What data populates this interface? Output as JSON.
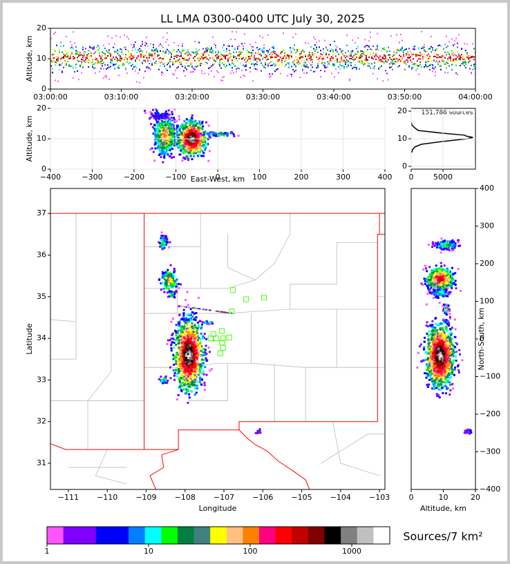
{
  "chart_data": [
    {
      "type": "density",
      "title": "LL LMA 0300-0400 UTC July 30, 2025",
      "y_label": "Altitude, km",
      "ylim": [
        0,
        20
      ],
      "yticks": [
        0,
        10,
        20
      ],
      "xticks": [
        "03:00:00",
        "03:10:00",
        "03:20:00",
        "03:30:00",
        "03:40:00",
        "03:50:00",
        "04:00:00"
      ]
    },
    {
      "type": "density",
      "x_label": "East-West, km",
      "y_label": "Altitude, km",
      "xlim": [
        -400,
        400
      ],
      "xticks": [
        {
          "value": -400,
          "label": "−400"
        },
        {
          "value": -300,
          "label": "−300"
        },
        {
          "value": -200,
          "label": "−200"
        },
        {
          "value": -100,
          "label": "−100"
        },
        0,
        100,
        200,
        300,
        400
      ],
      "ylim": [
        0,
        20
      ],
      "yticks": [
        0,
        10,
        20
      ],
      "grid": true
    },
    {
      "type": "line",
      "annotation": "151,786 sources",
      "xlim": [
        0,
        10100
      ],
      "xticks": [
        0,
        5000
      ],
      "ylim": [
        -1,
        21
      ],
      "yticks": [
        0,
        10,
        20
      ],
      "grid": true,
      "series": [
        {
          "color": "#000000",
          "y": [
            5,
            6,
            7,
            8,
            9,
            10,
            10.5,
            11,
            11.3,
            12,
            13,
            14,
            15,
            16
          ],
          "values": [
            100,
            200,
            540,
            1600,
            4900,
            8800,
            9700,
            8600,
            8400,
            5000,
            1100,
            540,
            100,
            30
          ]
        }
      ]
    },
    {
      "type": "map",
      "x_label": "Longitude",
      "y_label": "Latitude",
      "xlim": [
        -111.46,
        -102.86
      ],
      "xticks": [
        {
          "value": -111,
          "label": "−111"
        },
        {
          "value": -110,
          "label": "−110"
        },
        {
          "value": -109,
          "label": "−109"
        },
        {
          "value": -108,
          "label": "−108"
        },
        {
          "value": -107,
          "label": "−107"
        },
        {
          "value": -106,
          "label": "−106"
        },
        {
          "value": -105,
          "label": "−105"
        },
        {
          "value": -104,
          "label": "−104"
        },
        {
          "value": -103,
          "label": "−103"
        }
      ],
      "ylim": [
        30.37,
        37.6
      ],
      "yticks": [
        31,
        32,
        33,
        34,
        35,
        36,
        37
      ],
      "stations": {
        "color": "#66ff33",
        "x": [
          -106.77,
          -106.43,
          -105.97,
          -106.8,
          -107.05,
          -107.27,
          -107.34,
          -107.2,
          -107.02,
          -106.86,
          -107.05,
          -107.02,
          -107.09
        ],
        "values": [
          35.16,
          34.94,
          34.98,
          34.65,
          34.18,
          34.1,
          34.0,
          34.0,
          34.0,
          34.02,
          33.9,
          33.77,
          33.64
        ]
      }
    },
    {
      "type": "density",
      "x_label": "Altitude, km",
      "y_label": "North-South, km",
      "xlim": [
        0,
        20
      ],
      "xticks": [
        0,
        10,
        20
      ],
      "ylim": [
        -400,
        400
      ],
      "yticks": [
        {
          "value": -400,
          "label": "−400"
        },
        {
          "value": -300,
          "label": "−300"
        },
        {
          "value": -200,
          "label": "−200"
        },
        {
          "value": -100,
          "label": "−100"
        },
        0,
        100,
        200,
        300,
        400
      ],
      "y_axis_side": "right"
    },
    {
      "type": "colorbar",
      "label": "Sources/7 km²",
      "log": true,
      "xlim": [
        1,
        2366
      ],
      "xticks": [
        1,
        10,
        100,
        1000
      ],
      "colors": [
        "#ff55ff",
        "#8000ff",
        "#8000ff",
        "#0000ff",
        "#0000ff",
        "#0080ff",
        "#00ffff",
        "#00ff00",
        "#008040",
        "#408080",
        "#ffff00",
        "#ffc080",
        "#ff8000",
        "#ff0080",
        "#ff0000",
        "#c00000",
        "#800000",
        "#000000",
        "#808080",
        "#c0c0c0",
        "#ffffff"
      ]
    }
  ]
}
